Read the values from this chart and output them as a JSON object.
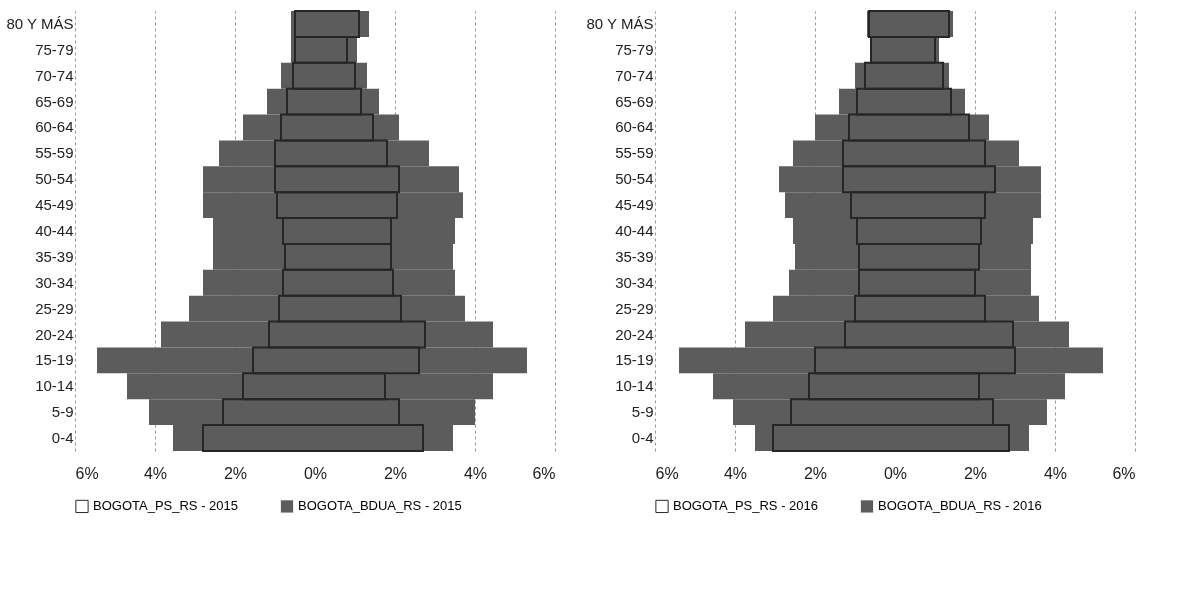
{
  "chart_data": [
    {
      "type": "bar",
      "orientation": "horizontal",
      "categories": [
        "80 Y MÁS",
        "75-79",
        "70-74",
        "65-69",
        "60-64",
        "55-59",
        "50-54",
        "45-49",
        "40-44",
        "35-39",
        "30-34",
        "25-29",
        "20-24",
        "15-19",
        "10-14",
        "5-9",
        "0-4"
      ],
      "series": [
        {
          "name": "BOGOTA_PS_RS - 2015",
          "color": "#262626",
          "base": [
            -0.5,
            -0.5,
            -0.55,
            -0.7,
            -0.85,
            -1.0,
            -1.0,
            -0.95,
            -0.8,
            -0.75,
            -0.8,
            -0.9,
            -1.15,
            -1.55,
            -1.8,
            -2.3,
            -2.8
          ],
          "values": [
            1.6,
            1.3,
            1.55,
            1.85,
            2.3,
            2.8,
            3.1,
            3.0,
            2.7,
            2.65,
            2.75,
            3.05,
            3.9,
            4.15,
            3.55,
            4.4,
            5.5
          ]
        },
        {
          "name": "BOGOTA_BDUA_RS - 2015",
          "color": "#5c5c5c",
          "base": [
            -0.6,
            -0.6,
            -0.85,
            -1.2,
            -1.8,
            -2.4,
            -2.8,
            -2.8,
            -2.55,
            -2.55,
            -2.8,
            -3.15,
            -3.85,
            -5.45,
            -4.7,
            -4.15,
            -3.55
          ],
          "values": [
            1.95,
            1.65,
            2.15,
            2.8,
            3.9,
            5.25,
            6.4,
            6.5,
            6.05,
            6.0,
            6.3,
            6.9,
            8.3,
            10.75,
            9.15,
            8.15,
            7.0
          ]
        }
      ],
      "xlim": [
        -6,
        6
      ],
      "xticks": [
        {
          "value": -6,
          "label": "6%"
        },
        {
          "value": -4,
          "label": "4%"
        },
        {
          "value": -2,
          "label": "2%"
        },
        {
          "value": 0,
          "label": "0%"
        },
        {
          "value": 2,
          "label": "2%"
        },
        {
          "value": 4,
          "label": "4%"
        },
        {
          "value": 6,
          "label": "6%"
        }
      ],
      "grid": "x",
      "legend": "bottom"
    },
    {
      "type": "bar",
      "orientation": "horizontal",
      "categories": [
        "80 Y MÁS",
        "75-79",
        "70-74",
        "65-69",
        "60-64",
        "55-59",
        "50-54",
        "45-49",
        "40-44",
        "35-39",
        "30-34",
        "25-29",
        "20-24",
        "15-19",
        "10-14",
        "5-9",
        "0-4"
      ],
      "series": [
        {
          "name": "BOGOTA_PS_RS - 2016",
          "color": "#262626",
          "base": [
            -0.65,
            -0.6,
            -0.75,
            -0.95,
            -1.15,
            -1.3,
            -1.3,
            -1.1,
            -0.95,
            -0.9,
            -0.9,
            -1.0,
            -1.25,
            -2.0,
            -2.15,
            -2.6,
            -3.05
          ],
          "values": [
            2.0,
            1.6,
            1.95,
            2.35,
            3.0,
            3.55,
            3.8,
            3.35,
            3.1,
            3.0,
            2.9,
            3.25,
            4.2,
            5.0,
            4.25,
            5.05,
            5.9
          ]
        },
        {
          "name": "BOGOTA_BDUA_RS - 2016",
          "color": "#5c5c5c",
          "base": [
            -0.7,
            -0.6,
            -1.0,
            -1.4,
            -2.0,
            -2.55,
            -2.9,
            -2.75,
            -2.55,
            -2.5,
            -2.65,
            -3.05,
            -3.75,
            -5.4,
            -4.55,
            -4.05,
            -3.5
          ],
          "values": [
            2.15,
            1.7,
            2.35,
            3.15,
            4.35,
            5.65,
            6.55,
            6.4,
            6.0,
            5.9,
            6.05,
            6.65,
            8.1,
            10.6,
            8.8,
            7.85,
            6.85
          ]
        }
      ],
      "xlim": [
        -6,
        6
      ],
      "xticks": [
        {
          "value": -6,
          "label": "6%"
        },
        {
          "value": -4,
          "label": "4%"
        },
        {
          "value": -2,
          "label": "2%"
        },
        {
          "value": 0,
          "label": "0%"
        },
        {
          "value": 2,
          "label": "2%"
        },
        {
          "value": 4,
          "label": "4%"
        },
        {
          "value": 6,
          "label": "6%"
        }
      ],
      "grid": "x",
      "legend": "bottom"
    }
  ]
}
